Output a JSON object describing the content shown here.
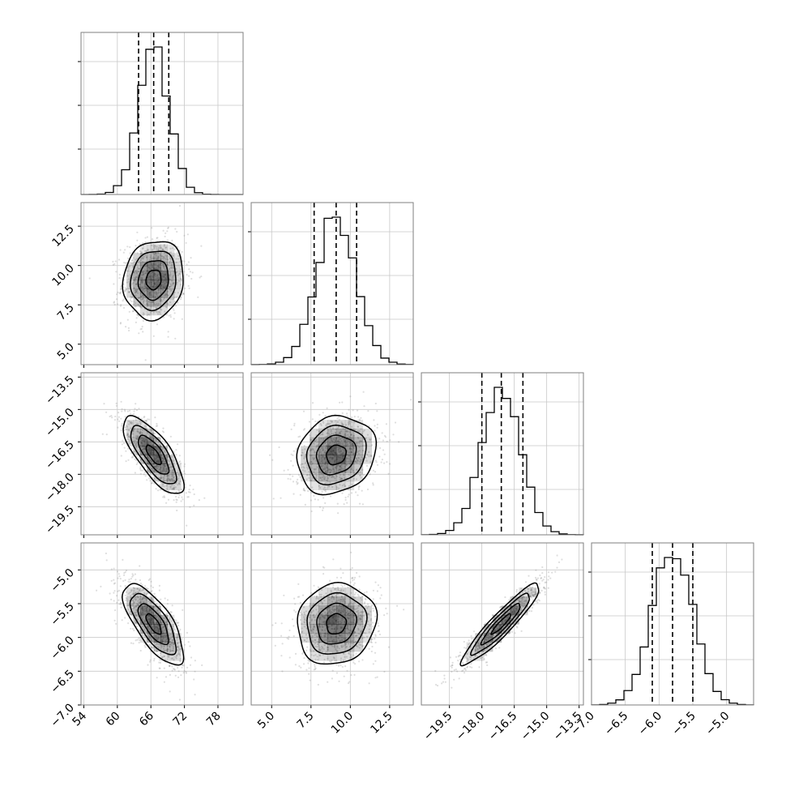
{
  "chart_data": {
    "type": "corner",
    "parameters": [
      {
        "range": [
          53.5,
          82.5
        ],
        "ticks": [
          54,
          60,
          66,
          72,
          78
        ],
        "tick_labels": [
          "54",
          "60",
          "66",
          "72",
          "78"
        ],
        "mean": 66.5,
        "sigma": 2.7,
        "quantiles": [
          63.8,
          66.5,
          69.2
        ]
      },
      {
        "range": [
          3.7,
          14.0
        ],
        "ticks": [
          5.0,
          7.5,
          10.0,
          12.5
        ],
        "tick_labels": [
          "5.0",
          "7.5",
          "10.0",
          "12.5"
        ],
        "mean": 9.1,
        "sigma": 1.25,
        "quantiles": [
          7.7,
          9.1,
          10.4
        ]
      },
      {
        "range": [
          -20.8,
          -13.3
        ],
        "ticks": [
          -19.5,
          -18.0,
          -16.5,
          -15.0,
          -13.5
        ],
        "tick_labels": [
          "−19.5",
          "−18.0",
          "−16.5",
          "−15.0",
          "−13.5"
        ],
        "mean": -17.1,
        "sigma": 0.9,
        "quantiles": [
          -18.0,
          -17.1,
          -16.1
        ]
      },
      {
        "range": [
          -7.0,
          -4.6
        ],
        "ticks": [
          -7.0,
          -6.5,
          -6.0,
          -5.5,
          -5.0
        ],
        "tick_labels": [
          "−7.0",
          "−6.5",
          "−6.0",
          "−5.5",
          "−5.0"
        ],
        "mean": -5.8,
        "sigma": 0.3,
        "quantiles": [
          -6.1,
          -5.8,
          -5.5
        ]
      }
    ],
    "correlations": {
      "1-0": 0.1,
      "2-0": -0.75,
      "2-1": 0.15,
      "3-0": -0.72,
      "3-1": 0.1,
      "3-2": 0.93
    },
    "contour_levels_sigma": [
      0.5,
      1.0,
      1.5,
      2.0
    ],
    "grid": true
  },
  "colors": {
    "line": "#000000",
    "samples": "#8a8a8a",
    "density": "#000000"
  }
}
